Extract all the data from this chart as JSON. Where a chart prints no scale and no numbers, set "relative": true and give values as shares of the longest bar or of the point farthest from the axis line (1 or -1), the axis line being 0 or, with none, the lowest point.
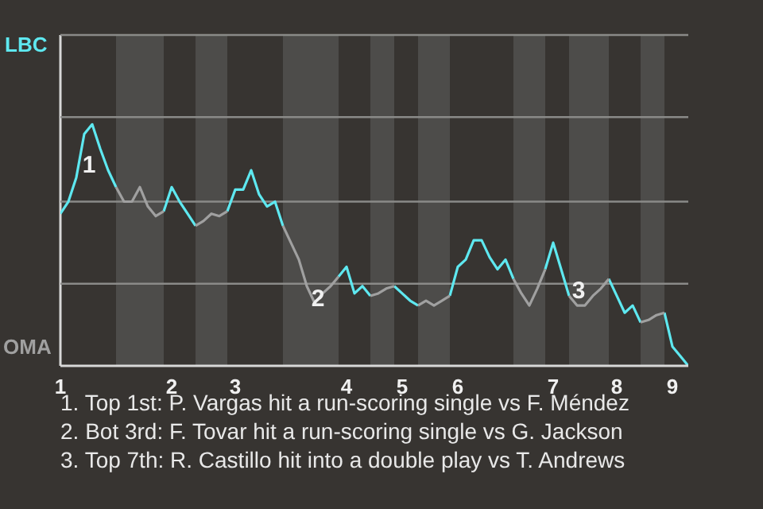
{
  "chart_data": {
    "type": "line",
    "relative": true,
    "categories": [
      "1",
      null,
      null,
      null,
      null,
      null,
      null,
      null,
      null,
      null,
      null,
      null,
      null,
      null,
      "2",
      null,
      null,
      null,
      null,
      null,
      null,
      null,
      "3",
      null,
      null,
      null,
      null,
      null,
      null,
      null,
      null,
      null,
      null,
      null,
      null,
      null,
      "4",
      null,
      null,
      null,
      null,
      null,
      null,
      "5",
      null,
      null,
      null,
      null,
      null,
      null,
      "6",
      null,
      null,
      null,
      null,
      null,
      null,
      null,
      null,
      null,
      null,
      null,
      "7",
      null,
      null,
      null,
      null,
      null,
      null,
      null,
      "8",
      null,
      null,
      null,
      null,
      null,
      null,
      "9",
      null,
      null
    ],
    "ref_lines": [
      {
        "axis": "y",
        "value": 0.34,
        "color": "#8a8a88"
      },
      {
        "axis": "y",
        "value": 0.68,
        "color": "#8a8a88"
      },
      {
        "axis": "y",
        "value": 1.03,
        "color": "#8a8a88"
      },
      {
        "axis": "y",
        "value": 1.37,
        "color": "#8a8a88"
      }
    ],
    "series": [
      {
        "color": "#5ee8f0",
        "values": [
          0.63,
          0.68,
          0.78,
          0.96,
          1,
          0.9,
          0.81,
          0.74,
          null,
          null,
          null,
          null,
          null,
          0.64,
          0.74,
          0.68,
          0.63,
          0.58,
          null,
          null,
          null,
          0.64,
          0.73,
          0.73,
          0.81,
          0.71,
          0.66,
          0.68,
          0.58,
          null,
          null,
          null,
          null,
          null,
          null,
          0.37,
          0.41,
          0.3,
          0.33,
          0.29,
          null,
          null,
          0.33,
          0.3,
          0.27,
          0.25,
          null,
          null,
          null,
          0.29,
          0.41,
          0.44,
          0.52,
          0.52,
          0.45,
          0.4,
          0.44,
          0.36,
          null,
          null,
          null,
          0.4,
          0.51,
          0.4,
          0.29,
          null,
          null,
          null,
          null,
          0.36,
          0.29,
          0.22,
          0.25,
          0.18,
          null,
          null,
          0.22,
          0.08,
          0.04,
          0
        ]
      },
      {
        "color": "#a0a0a0",
        "values": [
          null,
          null,
          null,
          null,
          null,
          null,
          null,
          0.74,
          0.68,
          0.68,
          0.74,
          0.66,
          0.62,
          0.64,
          null,
          null,
          null,
          0.58,
          0.6,
          0.63,
          0.62,
          0.64,
          null,
          null,
          null,
          null,
          null,
          null,
          0.58,
          0.51,
          0.44,
          0.33,
          0.26,
          0.3,
          0.33,
          0.37,
          null,
          null,
          null,
          0.29,
          0.3,
          0.32,
          0.33,
          null,
          null,
          0.25,
          0.27,
          0.25,
          0.27,
          0.29,
          null,
          null,
          null,
          null,
          null,
          null,
          null,
          0.36,
          0.3,
          0.25,
          0.32,
          0.4,
          null,
          null,
          0.29,
          0.25,
          0.25,
          0.29,
          0.32,
          0.36,
          null,
          null,
          null,
          0.18,
          0.19,
          0.21,
          0.22,
          null,
          null,
          null
        ]
      }
    ],
    "annotations": [
      "LBC",
      "OMA",
      "1",
      "2",
      "3",
      "1. Top 1st: P. Vargas hit a run-scoring single vs F. Méndez",
      "2. Bot 3rd: F. Tovar hit a run-scoring single vs G. Jackson",
      "3. Top 7th: R. Castillo hit into a double play vs T. Andrews"
    ]
  }
}
